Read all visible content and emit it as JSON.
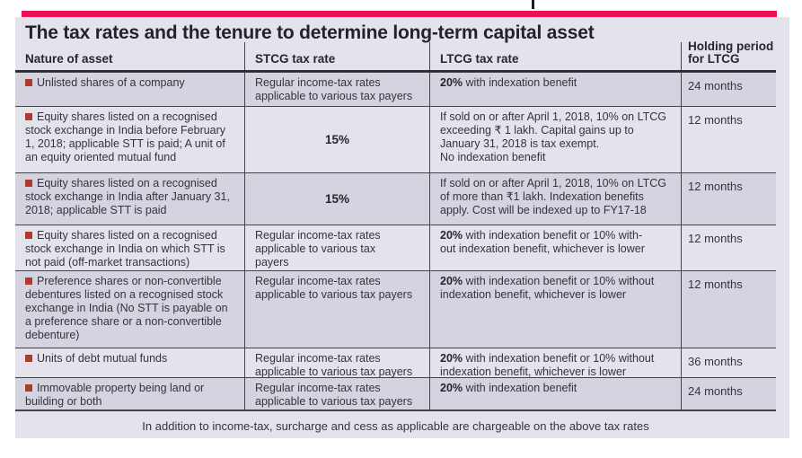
{
  "title": "The tax rates and the tenure to determine long-term capital asset",
  "columns": {
    "nature": "Nature of asset",
    "stcg": "STCG tax rate",
    "ltcg": "LTCG tax rate",
    "holding": "Holding period\nfor LTCG"
  },
  "rows": [
    {
      "asset": "Unlisted shares of a company",
      "stcg": "Regular income-tax rates\napplicable to various tax payers",
      "ltcg_bold": "20%",
      "ltcg": " with indexation benefit",
      "holding": "24 months"
    },
    {
      "asset": "Equity shares listed on a recognised\nstock exchange in India before February\n1, 2018; applicable STT is paid; A unit of\nan equity oriented mutual fund",
      "stcg": "15%",
      "ltcg_bold": "",
      "ltcg": "If sold on or after April 1, 2018, 10% on LTCG\nexceeding ₹ 1 lakh. Capital gains up to\nJanuary 31, 2018 is tax exempt.\nNo indexation benefit",
      "holding": "12 months"
    },
    {
      "asset": "Equity shares listed on a recognised\nstock exchange in India after January 31,\n2018; applicable STT is paid",
      "stcg": "15%",
      "ltcg_bold": "",
      "ltcg": "If sold on or after April 1, 2018, 10% on LTCG\nof more than ₹1 lakh. Indexation benefits\napply. Cost will be indexed up to FY17-18",
      "holding": "12 months"
    },
    {
      "asset": "Equity shares listed on a recognised\nstock exchange in India on which STT is\nnot paid (off-market transactions)",
      "stcg": "Regular income-tax rates\napplicable to various tax\npayers",
      "ltcg_bold": "20%",
      "ltcg": " with indexation benefit or 10% with-\nout indexation benefit, whichever is lower",
      "holding": "12 months"
    },
    {
      "asset": "Preference shares or non-convertible\ndebentures listed on a recognised stock\nexchange in India (No STT is payable on\na preference share or a non-convertible\ndebenture)",
      "stcg": "Regular income-tax rates\napplicable to various tax payers",
      "ltcg_bold": "20%",
      "ltcg": " with indexation benefit or 10% without\nindexation benefit, whichever is lower",
      "holding": "12 months"
    },
    {
      "asset": "Units of debt mutual funds",
      "stcg": "Regular income-tax rates\napplicable to various tax payers",
      "ltcg_bold": "20%",
      "ltcg": " with indexation benefit or 10% without\nindexation benefit, whichever is lower",
      "holding": "36 months"
    },
    {
      "asset": "Immovable property being land or\nbuilding or both",
      "stcg": "Regular income-tax rates\napplicable to various tax payers",
      "ltcg_bold": "20%",
      "ltcg": " with indexation benefit",
      "holding": "24 months"
    }
  ],
  "footnote": "In addition to income-tax, surcharge and cess as applicable are chargeable on the above tax rates",
  "colors": {
    "accent_bar": "#ea1455",
    "panel_background": "#e4e3ec",
    "row_stripe": "#d4d3e0",
    "bullet": "#b0392e",
    "text": "#34343c",
    "line": "#43434b"
  }
}
